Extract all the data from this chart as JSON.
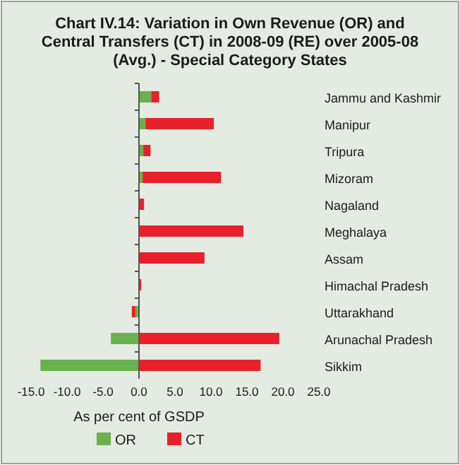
{
  "chart_data": {
    "type": "bar",
    "title": "Chart IV.14: Variation in Own Revenue (OR) and Central Transfers (CT) in 2008-09 (RE) over 2005-08 (Avg.) - Special Category States",
    "xlabel": "As per cent of GSDP",
    "orientation": "horizontal",
    "stacked": true,
    "categories": [
      "Jammu and Kashmir",
      "Manipur",
      "Tripura",
      "Mizoram",
      "Nagaland",
      "Meghalaya",
      "Assam",
      "Himachal Pradesh",
      "Uttarakhand",
      "Arunachal Pradesh",
      "Sikkim"
    ],
    "series": [
      {
        "name": "OR",
        "color": "#6ab04c",
        "values": [
          1.7,
          0.9,
          0.6,
          0.5,
          null,
          null,
          null,
          null,
          -0.5,
          -3.9,
          -13.7
        ]
      },
      {
        "name": "CT",
        "color": "#e8202a",
        "values": [
          1.1,
          9.5,
          1.0,
          10.9,
          0.7,
          14.5,
          9.1,
          0.3,
          -0.5,
          19.5,
          16.9
        ]
      }
    ],
    "xlim": [
      -15,
      25
    ],
    "xticks": [
      {
        "value": -15,
        "label": "-15.0"
      },
      {
        "value": -10,
        "label": "-10.0"
      },
      {
        "value": -5,
        "label": "-5.0"
      },
      {
        "value": 0,
        "label": "0.0"
      },
      {
        "value": 5,
        "label": "5.0"
      },
      {
        "value": 10,
        "label": "10.0"
      },
      {
        "value": 15,
        "label": "15.0"
      },
      {
        "value": 20,
        "label": "20.0"
      },
      {
        "value": 25,
        "label": "25.0"
      }
    ],
    "legend": "bottom"
  }
}
